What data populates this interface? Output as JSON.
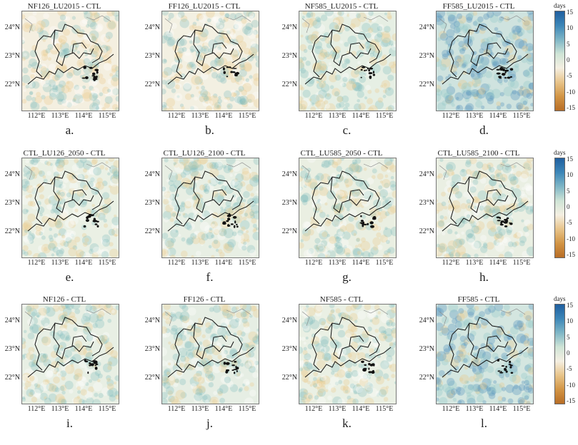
{
  "panels": [
    {
      "title": "NF126_LU2015 - CTL",
      "label": "a.",
      "tint": "#f4efe0"
    },
    {
      "title": "FF126_LU2015 - CTL",
      "label": "b.",
      "tint": "#f3f0e2"
    },
    {
      "title": "NF585_LU2015 - CTL",
      "label": "c.",
      "tint": "#e6efe4"
    },
    {
      "title": "FF585_LU2015 - CTL",
      "label": "d.",
      "tint": "#cfe3df"
    },
    {
      "title": "CTL_LU126_2050 - CTL",
      "label": "e.",
      "tint": "#eaf0e4"
    },
    {
      "title": "CTL_LU126_2100 - CTL",
      "label": "f.",
      "tint": "#e8efe4"
    },
    {
      "title": "CTL_LU585_2050 - CTL",
      "label": "g.",
      "tint": "#eaefe2"
    },
    {
      "title": "CTL_LU585_2100 - CTL",
      "label": "h.",
      "tint": "#eaefe3"
    },
    {
      "title": "NF126 - CTL",
      "label": "i.",
      "tint": "#e8efe4"
    },
    {
      "title": "FF126 - CTL",
      "label": "j.",
      "tint": "#e6eee4"
    },
    {
      "title": "NF585 - CTL",
      "label": "k.",
      "tint": "#eaf0e4"
    },
    {
      "title": "FF585 - CTL",
      "label": "l.",
      "tint": "#d4e6e0"
    }
  ],
  "axes": {
    "lat_labels": [
      "24°N",
      "23°N",
      "22°N"
    ],
    "lon_labels": [
      "112°E",
      "113°E",
      "114°E",
      "115°E"
    ]
  },
  "colorbar": {
    "unit": "days",
    "ticks": [
      "15",
      "10",
      "5",
      "0",
      "-5",
      "-10",
      "-15"
    ],
    "colors": [
      "#1f5f9f",
      "#3d87b8",
      "#7fb6c6",
      "#cfe4d6",
      "#f4efe2",
      "#e8c48a",
      "#d29545",
      "#b86d26"
    ]
  }
}
